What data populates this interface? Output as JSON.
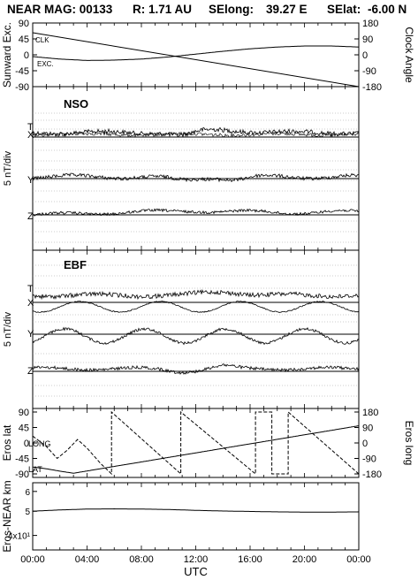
{
  "header": {
    "mission": "NEAR MAG: 00133",
    "radius": "R: 1.71 AU",
    "selong_label": "SElong:",
    "selong_value": "39.27 E",
    "selat_label": "SElat:",
    "selat_value": "-6.00 N"
  },
  "x_axis": {
    "label": "UTC",
    "ticks": [
      "00:00",
      "04:00",
      "08:00",
      "12:00",
      "16:00",
      "20:00",
      "00:00"
    ],
    "range_hours": [
      0,
      24
    ]
  },
  "chart_data": [
    {
      "type": "line",
      "panel": "sunward-clock",
      "ylabel": "Sunward Exc.",
      "ylabel_right": "Clock Angle",
      "yticks_left": [
        "90",
        "45",
        "0",
        "-45",
        "-90"
      ],
      "yticks_right": [
        "180",
        "90",
        "0",
        "-90",
        "-180"
      ],
      "ylim": [
        -90,
        90
      ],
      "ylim_right": [
        -180,
        180
      ],
      "annotations": [
        "CLK",
        "EXC."
      ],
      "series": [
        {
          "name": "CLK",
          "axis": "right",
          "x": [
            0,
            24
          ],
          "y": [
            125,
            -180
          ]
        },
        {
          "name": "EXC.",
          "axis": "left",
          "x": [
            0,
            2,
            4,
            6,
            8,
            10,
            12,
            14,
            16,
            18,
            20,
            22,
            24
          ],
          "y": [
            -5,
            -12,
            -16,
            -15,
            -12,
            -6,
            2,
            10,
            17,
            22,
            25,
            25,
            22
          ]
        }
      ]
    },
    {
      "type": "line",
      "panel": "NSO",
      "title": "NSO",
      "ylabel": "5 nT/div",
      "components": [
        "T",
        "X",
        "Y",
        "Z"
      ]
    },
    {
      "type": "line",
      "panel": "EBF",
      "title": "EBF",
      "ylabel": "5 nT/div",
      "components": [
        "T",
        "X",
        "Y",
        "Z"
      ]
    },
    {
      "type": "line",
      "panel": "eros-position",
      "ylabel": "Eros lat",
      "ylabel_right": "Eros long",
      "yticks_left": [
        "90",
        "45",
        "0",
        "-45",
        "-90"
      ],
      "yticks_right": [
        "180",
        "90",
        "0",
        "-90",
        "-180"
      ],
      "ylim": [
        -90,
        90
      ],
      "ylim_right": [
        -180,
        180
      ],
      "annotations": [
        "LONG",
        "LAT"
      ],
      "series": [
        {
          "name": "LAT",
          "axis": "left",
          "x": [
            0,
            1,
            2,
            3,
            24
          ],
          "y": [
            -70,
            -75,
            -82,
            -88,
            50
          ]
        },
        {
          "name": "LONG",
          "axis": "right",
          "x": [
            0,
            1,
            1.8,
            2.5,
            3.3,
            4.0,
            5.0,
            5.8,
            5.8,
            10.9,
            10.9,
            16.4,
            16.4,
            17.6,
            17.6,
            18.8,
            18.8,
            24
          ],
          "y": [
            40,
            -20,
            -90,
            -45,
            20,
            -30,
            -120,
            -180,
            180,
            -180,
            180,
            -180,
            180,
            180,
            -180,
            -180,
            180,
            -180
          ]
        }
      ]
    },
    {
      "type": "line",
      "panel": "eros-near-distance",
      "ylabel": "Eros-NEAR km",
      "ylog": true,
      "yticks_left": [
        "6",
        "5",
        "4x10¹"
      ],
      "ylim": [
        35,
        65
      ],
      "series": [
        {
          "name": "distance",
          "x": [
            0,
            2,
            4,
            6,
            8,
            10,
            12,
            14,
            16,
            18,
            20,
            22,
            24
          ],
          "y": [
            50.0,
            50.6,
            51.0,
            51.1,
            51.0,
            50.8,
            50.4,
            50.1,
            49.9,
            49.7,
            49.6,
            49.6,
            49.7
          ]
        }
      ]
    }
  ]
}
